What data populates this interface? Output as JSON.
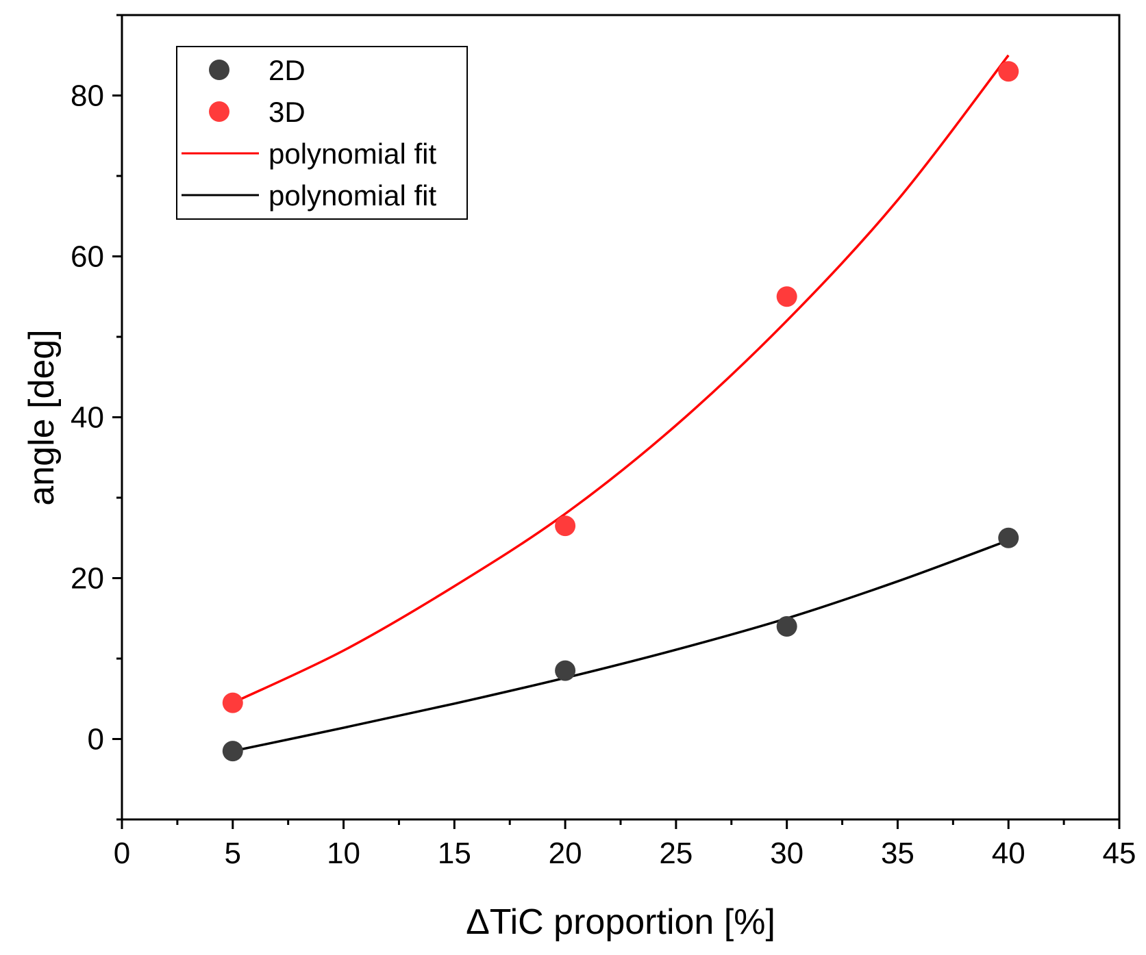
{
  "chart_data": {
    "type": "scatter",
    "title": "",
    "xlabel": "ΔTiC proportion [%]",
    "ylabel": "angle [deg]",
    "xlim": [
      0,
      45
    ],
    "ylim": [
      -10,
      90
    ],
    "x_major_ticks": [
      0,
      5,
      10,
      15,
      20,
      25,
      30,
      35,
      40,
      45
    ],
    "x_minor_ticks": [
      2.5,
      7.5,
      12.5,
      17.5,
      22.5,
      27.5,
      32.5,
      37.5,
      42.5
    ],
    "y_major_ticks": [
      0,
      20,
      40,
      60,
      80
    ],
    "y_minor_ticks": [
      -10,
      10,
      30,
      50,
      70,
      90
    ],
    "legend_position": "top-left",
    "series": [
      {
        "name": "2D",
        "kind": "scatter",
        "color": "#404040",
        "x": [
          5,
          20,
          30,
          40
        ],
        "y": [
          -1.5,
          8.5,
          14,
          25
        ]
      },
      {
        "name": "3D",
        "kind": "scatter",
        "color": "#ff3b3b",
        "x": [
          5,
          20,
          30,
          40
        ],
        "y": [
          4.5,
          26.5,
          55,
          83
        ]
      },
      {
        "name": "polynomial fit",
        "kind": "line",
        "fit_of": "3D",
        "color": "#ff0000",
        "x": [
          5,
          10,
          15,
          20,
          25,
          30,
          35,
          40
        ],
        "y": [
          4.5,
          11,
          19,
          28,
          39,
          52,
          67,
          85
        ]
      },
      {
        "name": "polynomial fit",
        "kind": "line",
        "fit_of": "2D",
        "color": "#000000",
        "x": [
          5,
          10,
          15,
          20,
          25,
          30,
          35,
          40
        ],
        "y": [
          -1.5,
          1.4,
          4.4,
          7.6,
          11.1,
          15,
          19.6,
          24.7
        ]
      }
    ]
  }
}
